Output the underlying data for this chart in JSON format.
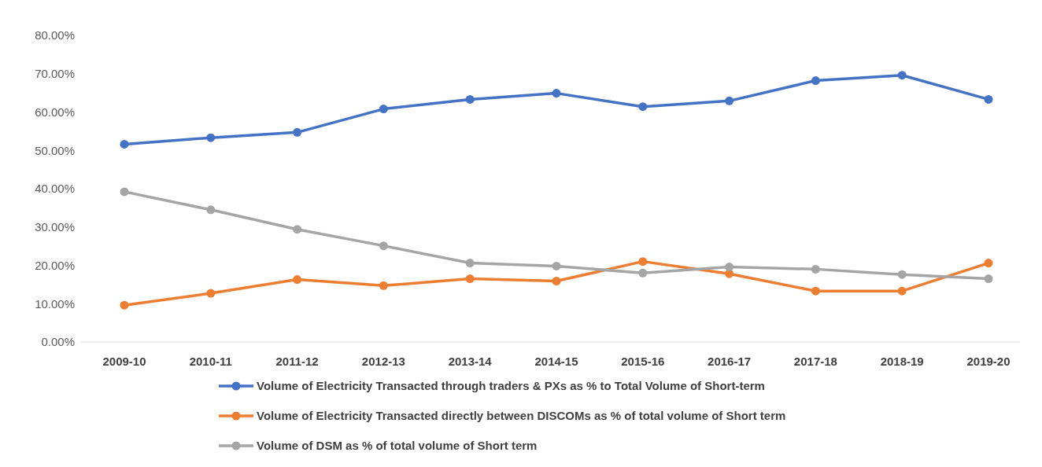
{
  "chart_data": {
    "type": "line",
    "categories": [
      "2009-10",
      "2010-11",
      "2011-12",
      "2012-13",
      "2013-14",
      "2014-15",
      "2015-16",
      "2016-17",
      "2017-18",
      "2018-19",
      "2019-20"
    ],
    "series": [
      {
        "name": "Volume of Electricity Transacted through traders & PXs as % to Total Volume of Short-term",
        "color": "#4472c4",
        "values": [
          51.6,
          53.3,
          54.7,
          60.8,
          63.3,
          64.9,
          61.4,
          62.9,
          68.2,
          69.6,
          63.3
        ]
      },
      {
        "name": "Volume of Electricity Transacted directly between DISCOMs as % of total volume of Short term",
        "color": "#ed7d31",
        "values": [
          9.6,
          12.7,
          16.3,
          14.7,
          16.5,
          15.9,
          21.0,
          17.8,
          13.3,
          13.3,
          20.6
        ]
      },
      {
        "name": "Volume of DSM as % of total volume of Short term",
        "color": "#a5a5a5",
        "values": [
          39.2,
          34.5,
          29.4,
          25.1,
          20.6,
          19.8,
          18.0,
          19.6,
          19.0,
          17.6,
          16.5
        ]
      }
    ],
    "ylim": [
      0,
      80
    ],
    "yticks": [
      {
        "value": 0,
        "label": "0.00%"
      },
      {
        "value": 10,
        "label": "10.00%"
      },
      {
        "value": 20,
        "label": "20.00%"
      },
      {
        "value": 30,
        "label": "30.00%"
      },
      {
        "value": 40,
        "label": "40.00%"
      },
      {
        "value": 50,
        "label": "50.00%"
      },
      {
        "value": 60,
        "label": "60.00%"
      },
      {
        "value": 70,
        "label": "70.00%"
      },
      {
        "value": 80,
        "label": "80.00%"
      }
    ],
    "legend": "bottom",
    "marker": "circle",
    "line_style": "solid"
  }
}
